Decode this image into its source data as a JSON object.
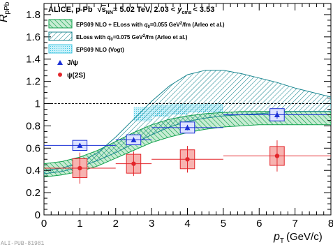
{
  "chart_data": {
    "type": "scatter",
    "header": "ALICE, p-Pb  √s_NN = 5.02 TeV, 2.03 < y_cms < 3.53",
    "header_parts": {
      "experiment": "ALICE, p-Pb",
      "sqrt": "√",
      "s": "s",
      "nn": "NN",
      "energy": "= 5.02 TeV, 2.03 <",
      "y": "y",
      "cms": "cms",
      "range_end": "< 3.53"
    },
    "ylabel_parts": {
      "main": "R",
      "sub": "pPb"
    },
    "xlabel_parts": {
      "main": "p",
      "sub": "T",
      "unit": "(GeV/c)"
    },
    "watermark": "ALI-PUB-81981",
    "xlim": [
      0,
      8
    ],
    "ylim": [
      0,
      1.9
    ],
    "x_ticks": [
      "0",
      "1",
      "2",
      "3",
      "4",
      "5",
      "6",
      "7",
      "8"
    ],
    "y_ticks": [
      "0",
      "0.2",
      "0.4",
      "0.6",
      "0.8",
      "1",
      "1.2",
      "1.4",
      "1.6",
      "1.8"
    ],
    "reference_line": 1,
    "legend": {
      "band1": {
        "pre": "EPS09 NLO + ELoss with ",
        "q": "q",
        "q_sub": "0",
        "post": "=0.055 GeV",
        "exp": "2",
        "unit": "/fm (Arleo et al.)"
      },
      "band2": {
        "pre": "ELoss with ",
        "q": "q",
        "q_sub": "0",
        "post": "=0.075 GeV",
        "exp": "2",
        "unit": "/fm (Arleo et al.)"
      },
      "band3": {
        "text": "EPS09 NLO (Vogt)"
      },
      "jpsi": "J/ψ",
      "psi2s": "ψ(2S)"
    },
    "colors": {
      "jpsi": "#1a2fd6",
      "jpsi_fill": "#dde3ff",
      "psi2s": "#e3262b",
      "psi2s_fill": "#f7b3b0",
      "band_green": "#0da04a",
      "band_green_fill": "#c7ecd3",
      "band_teal": "#17858f",
      "band_cyan": "#3fc6e2",
      "refline": "#000000"
    },
    "series": [
      {
        "name": "J/ψ",
        "points": [
          {
            "x": 1.0,
            "y": 0.625,
            "xerr": [
              1.0,
              1.0
            ],
            "yerr": 0.02,
            "syst_y": 0.045,
            "syst_x": 0.2
          },
          {
            "x": 2.5,
            "y": 0.675,
            "xerr": [
              0.5,
              0.5
            ],
            "yerr": 0.02,
            "syst_y": 0.045,
            "syst_x": 0.2
          },
          {
            "x": 4.0,
            "y": 0.785,
            "xerr": [
              1.0,
              1.0
            ],
            "yerr": 0.025,
            "syst_y": 0.05,
            "syst_x": 0.2
          },
          {
            "x": 6.5,
            "y": 0.9,
            "xerr": [
              1.5,
              1.5
            ],
            "yerr": 0.035,
            "syst_y": 0.055,
            "syst_x": 0.2
          }
        ]
      },
      {
        "name": "ψ(2S)",
        "points": [
          {
            "x": 1.0,
            "y": 0.42,
            "xerr": [
              1.0,
              1.0
            ],
            "yerr": 0.14,
            "syst_y": 0.085,
            "syst_x": 0.2
          },
          {
            "x": 2.5,
            "y": 0.46,
            "xerr": [
              0.5,
              0.5
            ],
            "yerr": 0.11,
            "syst_y": 0.085,
            "syst_x": 0.2
          },
          {
            "x": 4.0,
            "y": 0.5,
            "xerr": [
              1.0,
              1.0
            ],
            "yerr": 0.12,
            "syst_y": 0.085,
            "syst_x": 0.2
          },
          {
            "x": 6.5,
            "y": 0.53,
            "xerr": [
              1.5,
              1.5
            ],
            "yerr": 0.14,
            "syst_y": 0.085,
            "syst_x": 0.2
          }
        ]
      }
    ],
    "bands": [
      {
        "name": "EPS09 NLO + ELoss with q0=0.055 GeV2/fm (Arleo et al.)",
        "x": [
          0,
          0.5,
          1,
          1.5,
          2,
          2.5,
          3,
          3.5,
          4,
          4.5,
          5,
          5.5,
          6,
          6.5,
          7,
          7.5,
          8
        ],
        "lower": [
          0.34,
          0.36,
          0.39,
          0.44,
          0.51,
          0.58,
          0.65,
          0.7,
          0.74,
          0.77,
          0.79,
          0.8,
          0.81,
          0.81,
          0.81,
          0.81,
          0.81
        ],
        "upper": [
          0.46,
          0.48,
          0.52,
          0.58,
          0.66,
          0.74,
          0.81,
          0.86,
          0.89,
          0.91,
          0.92,
          0.93,
          0.93,
          0.93,
          0.93,
          0.93,
          0.93
        ]
      },
      {
        "name": "ELoss with q0=0.075 GeV2/fm (Arleo et al.)",
        "x": [
          0,
          0.5,
          1,
          1.5,
          2,
          2.5,
          3,
          3.5,
          4,
          4.5,
          5,
          5.5,
          6,
          6.5,
          7,
          7.5,
          8
        ],
        "lower": [
          0.37,
          0.39,
          0.43,
          0.49,
          0.56,
          0.64,
          0.72,
          0.79,
          0.84,
          0.87,
          0.89,
          0.9,
          0.91,
          0.92,
          0.93,
          0.93,
          0.93
        ],
        "upper": [
          0.4,
          0.42,
          0.47,
          0.56,
          0.7,
          0.86,
          1.02,
          1.16,
          1.26,
          1.3,
          1.3,
          1.27,
          1.23,
          1.19,
          1.14,
          1.1,
          1.06
        ]
      },
      {
        "name": "EPS09 NLO (Vogt)",
        "steps": [
          {
            "x0": 2.5,
            "x1": 3.0,
            "lower": 0.84,
            "upper": 0.97
          },
          {
            "x0": 3.0,
            "x1": 3.5,
            "lower": 0.88,
            "upper": 0.99
          },
          {
            "x0": 3.5,
            "x1": 4.0,
            "lower": 0.9,
            "upper": 1.0
          },
          {
            "x0": 4.0,
            "x1": 5.0,
            "lower": 0.92,
            "upper": 1.0
          }
        ]
      }
    ]
  }
}
